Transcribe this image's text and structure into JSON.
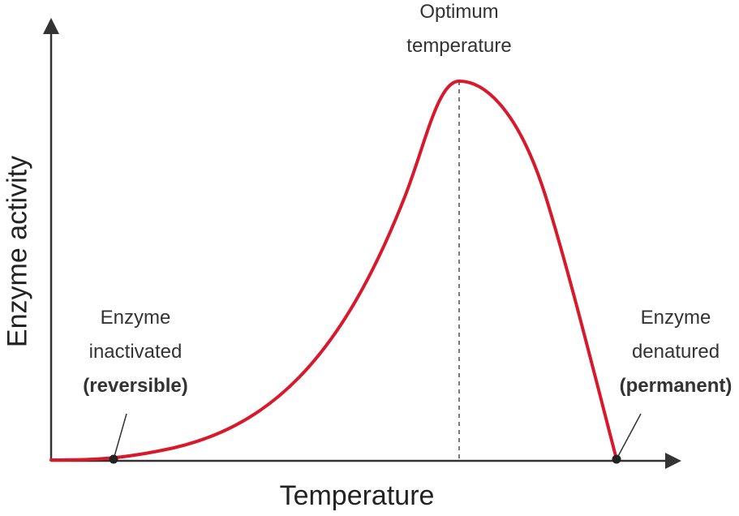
{
  "diagram": {
    "x_axis_label": "Temperature",
    "y_axis_label": "Enzyme activity",
    "curve_color": "#d7192b",
    "axis_color": "#333333",
    "annotations": {
      "optimum": {
        "line1": "Optimum",
        "line2": "temperature"
      },
      "inactivated": {
        "line1": "Enzyme",
        "line2": "inactivated",
        "line3": "(reversible)"
      },
      "denatured": {
        "line1": "Enzyme",
        "line2": "denatured",
        "line3": "(permanent)"
      }
    }
  }
}
